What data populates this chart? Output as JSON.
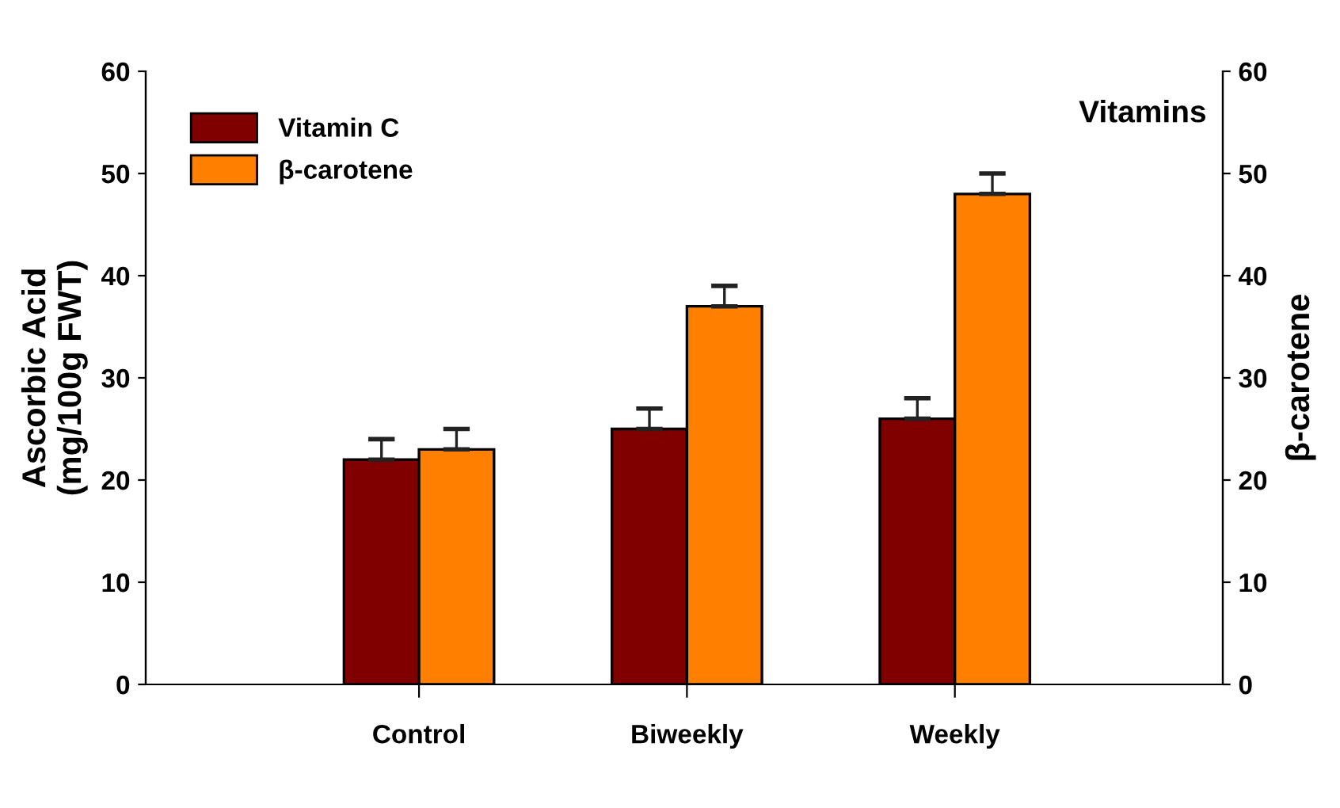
{
  "chart_data": {
    "type": "bar",
    "categories": [
      "Control",
      "Biweekly",
      "Weekly"
    ],
    "series": [
      {
        "name": "Vitamin C",
        "color": "#800000",
        "values": [
          22,
          25,
          26
        ],
        "errors": [
          [
            22,
            24
          ],
          [
            25,
            27
          ],
          [
            26,
            28
          ]
        ]
      },
      {
        "name": "β-carotene",
        "color": "#ff8000",
        "values": [
          23,
          37,
          48
        ],
        "errors": [
          [
            23,
            25
          ],
          [
            37,
            39
          ],
          [
            48,
            50
          ]
        ]
      }
    ],
    "ylabel": "Ascorbic Acid\n(mg/100g FWT)",
    "y2label": "β-carotene",
    "ylim": [
      0,
      60
    ],
    "yticks": [
      0,
      10,
      20,
      30,
      40,
      50,
      60
    ],
    "y2lim": [
      0,
      60
    ],
    "y2ticks": [
      0,
      10,
      20,
      30,
      40,
      50,
      60
    ],
    "annotations": [
      "Vitamins"
    ],
    "legend": "top left",
    "grid": false
  }
}
